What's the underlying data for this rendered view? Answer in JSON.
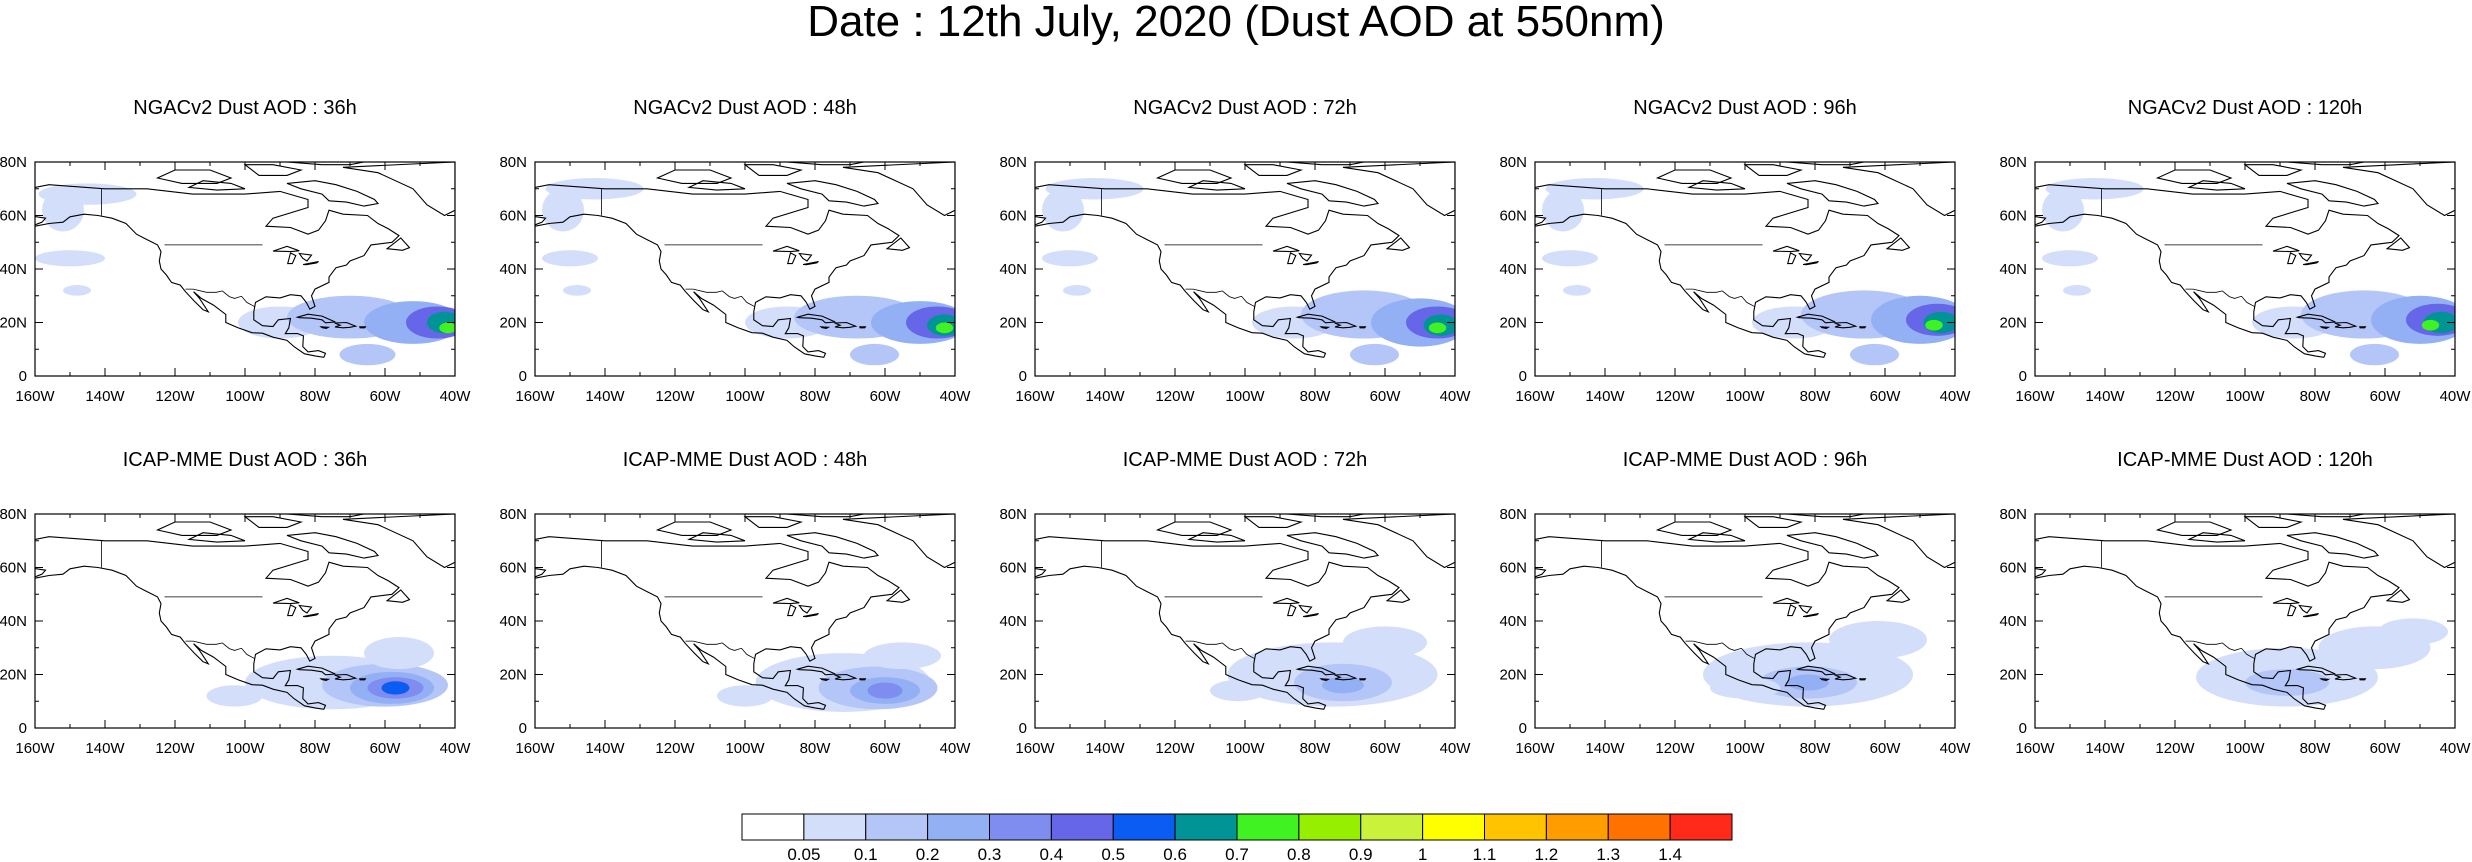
{
  "title": "Date : 12th July, 2020 (Dust AOD at 550nm)",
  "chart_data": [
    {
      "type": "heatmap",
      "title": "NGACv2 Dust AOD : 36h",
      "xlim": [
        -160,
        -40
      ],
      "ylim": [
        0,
        80
      ],
      "xticks": [
        "160W",
        "140W",
        "120W",
        "100W",
        "80W",
        "60W",
        "40W"
      ],
      "yticks": [
        "0",
        "20N",
        "40N",
        "60N",
        "80N"
      ],
      "features": [
        {
          "lon": -90,
          "lat": 20,
          "rx": 12,
          "ry": 6,
          "level": 1
        },
        {
          "lon": -70,
          "lat": 22,
          "rx": 18,
          "ry": 8,
          "level": 2
        },
        {
          "lon": -52,
          "lat": 20,
          "rx": 14,
          "ry": 8,
          "level": 3
        },
        {
          "lon": -45,
          "lat": 20,
          "rx": 9,
          "ry": 6,
          "level": 5
        },
        {
          "lon": -43,
          "lat": 20,
          "rx": 5,
          "ry": 4,
          "level": 7
        },
        {
          "lon": -42,
          "lat": 18,
          "rx": 2.5,
          "ry": 2,
          "level": 8
        },
        {
          "lon": -65,
          "lat": 8,
          "rx": 8,
          "ry": 4,
          "level": 2
        },
        {
          "lon": -145,
          "lat": 68,
          "rx": 14,
          "ry": 4,
          "level": 1
        },
        {
          "lon": -152,
          "lat": 62,
          "rx": 6,
          "ry": 8,
          "level": 1
        },
        {
          "lon": -150,
          "lat": 44,
          "rx": 10,
          "ry": 3,
          "level": 1
        },
        {
          "lon": -148,
          "lat": 32,
          "rx": 4,
          "ry": 2,
          "level": 1
        }
      ]
    },
    {
      "type": "heatmap",
      "title": "NGACv2 Dust AOD : 48h",
      "xlim": [
        -160,
        -40
      ],
      "ylim": [
        0,
        80
      ],
      "xticks": [
        "160W",
        "140W",
        "120W",
        "100W",
        "80W",
        "60W",
        "40W"
      ],
      "yticks": [
        "0",
        "20N",
        "40N",
        "60N",
        "80N"
      ],
      "features": [
        {
          "lon": -88,
          "lat": 20,
          "rx": 12,
          "ry": 6,
          "level": 1
        },
        {
          "lon": -68,
          "lat": 22,
          "rx": 18,
          "ry": 8,
          "level": 2
        },
        {
          "lon": -50,
          "lat": 20,
          "rx": 14,
          "ry": 8,
          "level": 3
        },
        {
          "lon": -45,
          "lat": 20,
          "rx": 9,
          "ry": 6,
          "level": 5
        },
        {
          "lon": -43,
          "lat": 19,
          "rx": 5,
          "ry": 4,
          "level": 7
        },
        {
          "lon": -43,
          "lat": 18,
          "rx": 2.5,
          "ry": 2,
          "level": 8
        },
        {
          "lon": -63,
          "lat": 8,
          "rx": 7,
          "ry": 4,
          "level": 2
        },
        {
          "lon": -143,
          "lat": 70,
          "rx": 14,
          "ry": 4,
          "level": 1
        },
        {
          "lon": -152,
          "lat": 62,
          "rx": 6,
          "ry": 8,
          "level": 1
        },
        {
          "lon": -150,
          "lat": 44,
          "rx": 8,
          "ry": 3,
          "level": 1
        },
        {
          "lon": -148,
          "lat": 32,
          "rx": 4,
          "ry": 2,
          "level": 1
        }
      ]
    },
    {
      "type": "heatmap",
      "title": "NGACv2 Dust AOD : 72h",
      "xlim": [
        -160,
        -40
      ],
      "ylim": [
        0,
        80
      ],
      "xticks": [
        "160W",
        "140W",
        "120W",
        "100W",
        "80W",
        "60W",
        "40W"
      ],
      "yticks": [
        "0",
        "20N",
        "40N",
        "60N",
        "80N"
      ],
      "features": [
        {
          "lon": -86,
          "lat": 20,
          "rx": 12,
          "ry": 6,
          "level": 1
        },
        {
          "lon": -66,
          "lat": 23,
          "rx": 18,
          "ry": 9,
          "level": 2
        },
        {
          "lon": -50,
          "lat": 20,
          "rx": 14,
          "ry": 9,
          "level": 3
        },
        {
          "lon": -45,
          "lat": 20,
          "rx": 9,
          "ry": 6,
          "level": 5
        },
        {
          "lon": -44,
          "lat": 19,
          "rx": 5,
          "ry": 4,
          "level": 7
        },
        {
          "lon": -45,
          "lat": 18,
          "rx": 2.5,
          "ry": 2,
          "level": 8
        },
        {
          "lon": -63,
          "lat": 8,
          "rx": 7,
          "ry": 4,
          "level": 2
        },
        {
          "lon": -143,
          "lat": 70,
          "rx": 14,
          "ry": 4,
          "level": 1
        },
        {
          "lon": -152,
          "lat": 62,
          "rx": 6,
          "ry": 8,
          "level": 1
        },
        {
          "lon": -150,
          "lat": 44,
          "rx": 8,
          "ry": 3,
          "level": 1
        },
        {
          "lon": -148,
          "lat": 32,
          "rx": 4,
          "ry": 2,
          "level": 1
        }
      ]
    },
    {
      "type": "heatmap",
      "title": "NGACv2 Dust AOD : 96h",
      "xlim": [
        -160,
        -40
      ],
      "ylim": [
        0,
        80
      ],
      "xticks": [
        "160W",
        "140W",
        "120W",
        "100W",
        "80W",
        "60W",
        "40W"
      ],
      "yticks": [
        "0",
        "20N",
        "40N",
        "60N",
        "80N"
      ],
      "features": [
        {
          "lon": -86,
          "lat": 20,
          "rx": 12,
          "ry": 6,
          "level": 1
        },
        {
          "lon": -66,
          "lat": 23,
          "rx": 18,
          "ry": 9,
          "level": 2
        },
        {
          "lon": -50,
          "lat": 21,
          "rx": 14,
          "ry": 9,
          "level": 3
        },
        {
          "lon": -45,
          "lat": 21,
          "rx": 9,
          "ry": 6,
          "level": 5
        },
        {
          "lon": -44,
          "lat": 20,
          "rx": 5,
          "ry": 4,
          "level": 7
        },
        {
          "lon": -46,
          "lat": 19,
          "rx": 2.5,
          "ry": 2,
          "level": 8
        },
        {
          "lon": -63,
          "lat": 8,
          "rx": 7,
          "ry": 4,
          "level": 2
        },
        {
          "lon": -143,
          "lat": 70,
          "rx": 14,
          "ry": 4,
          "level": 1
        },
        {
          "lon": -152,
          "lat": 62,
          "rx": 6,
          "ry": 8,
          "level": 1
        },
        {
          "lon": -150,
          "lat": 44,
          "rx": 8,
          "ry": 3,
          "level": 1
        },
        {
          "lon": -148,
          "lat": 32,
          "rx": 4,
          "ry": 2,
          "level": 1
        }
      ]
    },
    {
      "type": "heatmap",
      "title": "NGACv2 Dust AOD : 120h",
      "xlim": [
        -160,
        -40
      ],
      "ylim": [
        0,
        80
      ],
      "xticks": [
        "160W",
        "140W",
        "120W",
        "100W",
        "80W",
        "60W",
        "40W"
      ],
      "yticks": [
        "0",
        "20N",
        "40N",
        "60N",
        "80N"
      ],
      "features": [
        {
          "lon": -86,
          "lat": 20,
          "rx": 12,
          "ry": 6,
          "level": 1
        },
        {
          "lon": -66,
          "lat": 23,
          "rx": 18,
          "ry": 9,
          "level": 2
        },
        {
          "lon": -50,
          "lat": 21,
          "rx": 14,
          "ry": 9,
          "level": 3
        },
        {
          "lon": -45,
          "lat": 21,
          "rx": 9,
          "ry": 6,
          "level": 5
        },
        {
          "lon": -44,
          "lat": 20,
          "rx": 5,
          "ry": 4,
          "level": 7
        },
        {
          "lon": -47,
          "lat": 19,
          "rx": 2.5,
          "ry": 2,
          "level": 8
        },
        {
          "lon": -63,
          "lat": 8,
          "rx": 7,
          "ry": 4,
          "level": 2
        },
        {
          "lon": -143,
          "lat": 70,
          "rx": 14,
          "ry": 4,
          "level": 1
        },
        {
          "lon": -152,
          "lat": 62,
          "rx": 6,
          "ry": 8,
          "level": 1
        },
        {
          "lon": -150,
          "lat": 44,
          "rx": 8,
          "ry": 3,
          "level": 1
        },
        {
          "lon": -148,
          "lat": 32,
          "rx": 4,
          "ry": 2,
          "level": 1
        }
      ]
    },
    {
      "type": "heatmap",
      "title": "ICAP-MME Dust AOD : 36h",
      "xlim": [
        -160,
        -40
      ],
      "ylim": [
        0,
        80
      ],
      "xticks": [
        "160W",
        "140W",
        "120W",
        "100W",
        "80W",
        "60W",
        "40W"
      ],
      "yticks": [
        "0",
        "20N",
        "40N",
        "60N",
        "80N"
      ],
      "features": [
        {
          "lon": -75,
          "lat": 17,
          "rx": 25,
          "ry": 10,
          "level": 1
        },
        {
          "lon": -60,
          "lat": 16,
          "rx": 18,
          "ry": 8,
          "level": 2
        },
        {
          "lon": -58,
          "lat": 15,
          "rx": 12,
          "ry": 6,
          "level": 3
        },
        {
          "lon": -57,
          "lat": 15,
          "rx": 8,
          "ry": 4,
          "level": 4
        },
        {
          "lon": -57,
          "lat": 15,
          "rx": 4,
          "ry": 2.5,
          "level": 6
        },
        {
          "lon": -56,
          "lat": 28,
          "rx": 10,
          "ry": 6,
          "level": 1
        },
        {
          "lon": -103,
          "lat": 12,
          "rx": 8,
          "ry": 4,
          "level": 1
        }
      ]
    },
    {
      "type": "heatmap",
      "title": "ICAP-MME Dust AOD : 48h",
      "xlim": [
        -160,
        -40
      ],
      "ylim": [
        0,
        80
      ],
      "xticks": [
        "160W",
        "140W",
        "120W",
        "100W",
        "80W",
        "60W",
        "40W"
      ],
      "yticks": [
        "0",
        "20N",
        "40N",
        "60N",
        "80N"
      ],
      "features": [
        {
          "lon": -72,
          "lat": 17,
          "rx": 25,
          "ry": 11,
          "level": 1
        },
        {
          "lon": -62,
          "lat": 15,
          "rx": 17,
          "ry": 8,
          "level": 2
        },
        {
          "lon": -60,
          "lat": 14,
          "rx": 10,
          "ry": 5,
          "level": 3
        },
        {
          "lon": -60,
          "lat": 14,
          "rx": 5,
          "ry": 3,
          "level": 4
        },
        {
          "lon": -55,
          "lat": 27,
          "rx": 11,
          "ry": 5,
          "level": 1
        },
        {
          "lon": -100,
          "lat": 12,
          "rx": 8,
          "ry": 4,
          "level": 1
        }
      ]
    },
    {
      "type": "heatmap",
      "title": "ICAP-MME Dust AOD : 72h",
      "xlim": [
        -160,
        -40
      ],
      "ylim": [
        0,
        80
      ],
      "xticks": [
        "160W",
        "140W",
        "120W",
        "100W",
        "80W",
        "60W",
        "40W"
      ],
      "yticks": [
        "0",
        "20N",
        "40N",
        "60N",
        "80N"
      ],
      "features": [
        {
          "lon": -75,
          "lat": 20,
          "rx": 30,
          "ry": 12,
          "level": 1
        },
        {
          "lon": -72,
          "lat": 17,
          "rx": 14,
          "ry": 7,
          "level": 2
        },
        {
          "lon": -72,
          "lat": 16,
          "rx": 6,
          "ry": 3,
          "level": 3
        },
        {
          "lon": -60,
          "lat": 32,
          "rx": 12,
          "ry": 6,
          "level": 1
        },
        {
          "lon": -102,
          "lat": 14,
          "rx": 8,
          "ry": 4,
          "level": 1
        }
      ]
    },
    {
      "type": "heatmap",
      "title": "ICAP-MME Dust AOD : 96h",
      "xlim": [
        -160,
        -40
      ],
      "ylim": [
        0,
        80
      ],
      "xticks": [
        "160W",
        "140W",
        "120W",
        "100W",
        "80W",
        "60W",
        "40W"
      ],
      "yticks": [
        "0",
        "20N",
        "40N",
        "60N",
        "80N"
      ],
      "features": [
        {
          "lon": -82,
          "lat": 20,
          "rx": 30,
          "ry": 12,
          "level": 1
        },
        {
          "lon": -82,
          "lat": 17,
          "rx": 14,
          "ry": 6,
          "level": 2
        },
        {
          "lon": -82,
          "lat": 17,
          "rx": 6,
          "ry": 3,
          "level": 3
        },
        {
          "lon": -62,
          "lat": 33,
          "rx": 14,
          "ry": 7,
          "level": 1
        },
        {
          "lon": -100,
          "lat": 15,
          "rx": 10,
          "ry": 4,
          "level": 1
        }
      ]
    },
    {
      "type": "heatmap",
      "title": "ICAP-MME Dust AOD : 120h",
      "xlim": [
        -160,
        -40
      ],
      "ylim": [
        0,
        80
      ],
      "xticks": [
        "160W",
        "140W",
        "120W",
        "100W",
        "80W",
        "60W",
        "40W"
      ],
      "yticks": [
        "0",
        "20N",
        "40N",
        "60N",
        "80N"
      ],
      "features": [
        {
          "lon": -88,
          "lat": 19,
          "rx": 26,
          "ry": 11,
          "level": 1
        },
        {
          "lon": -88,
          "lat": 17,
          "rx": 12,
          "ry": 5,
          "level": 2
        },
        {
          "lon": -63,
          "lat": 30,
          "rx": 16,
          "ry": 8,
          "level": 1
        },
        {
          "lon": -52,
          "lat": 36,
          "rx": 10,
          "ry": 5,
          "level": 1
        }
      ]
    }
  ],
  "colorbar": {
    "colors": [
      "#ffffff",
      "#d3dffa",
      "#b4c6f7",
      "#94b0f5",
      "#7f8cf0",
      "#6666e8",
      "#0a5cf2",
      "#009496",
      "#41f223",
      "#96ef00",
      "#caf23a",
      "#ffff00",
      "#ffc300",
      "#ff9d00",
      "#ff7200",
      "#ff2a1a"
    ],
    "labels": [
      "0.05",
      "0.1",
      "0.2",
      "0.3",
      "0.4",
      "0.5",
      "0.6",
      "0.7",
      "0.8",
      "0.9",
      "1",
      "1.1",
      "1.2",
      "1.3",
      "1.4"
    ]
  }
}
